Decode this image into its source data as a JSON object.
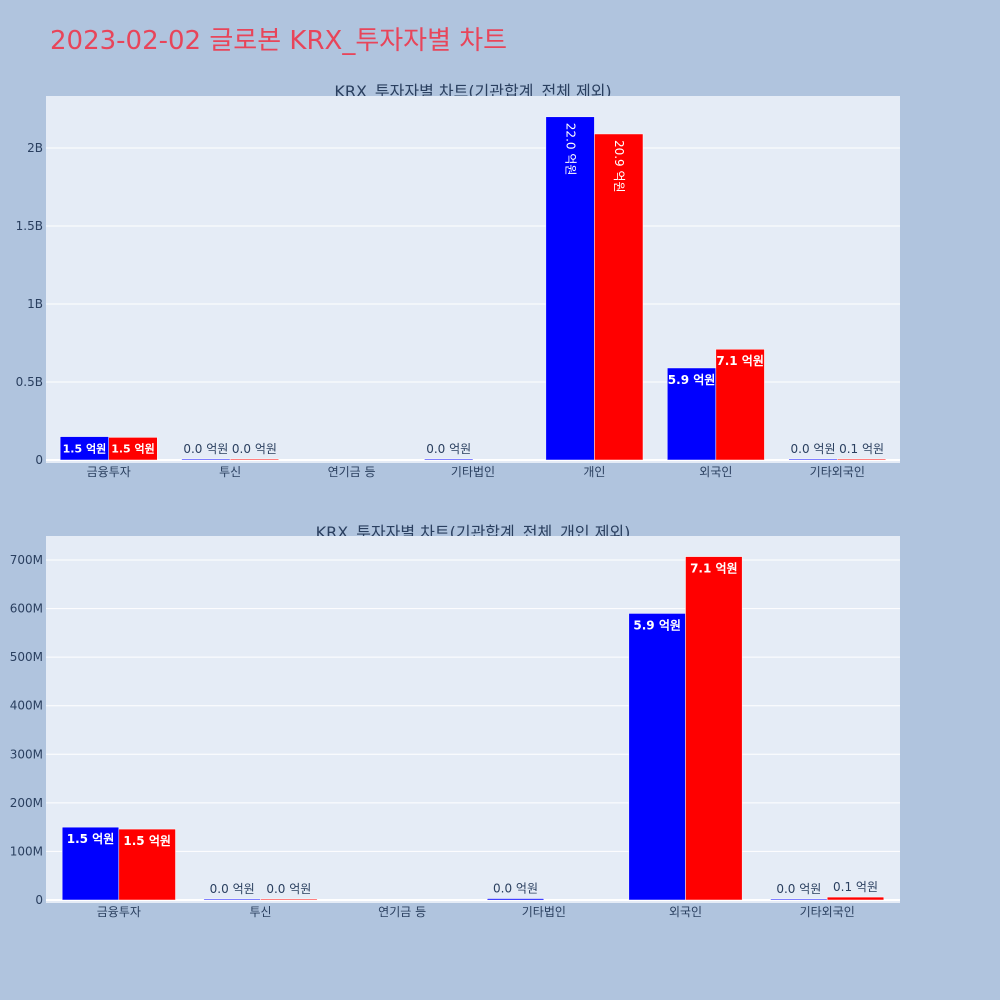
{
  "page": {
    "title": "2023-02-02 글로본 KRX_투자자별 차트"
  },
  "colors": {
    "background": "#b0c4de",
    "plot_bg": "#e5ecf6",
    "series_1": "#0000ff",
    "series_2": "#ff0000",
    "title": "#e8455a",
    "text": "#2a3f5f"
  },
  "chart_data": [
    {
      "type": "bar",
      "title": "KRX_투자자별 차트(기관합계_전체 제외)",
      "categories": [
        "금융투자",
        "투신",
        "연기금 등",
        "기타법인",
        "개인",
        "외국인",
        "기타외국인"
      ],
      "series": [
        {
          "color": "#0000ff",
          "values": [
            150000000,
            0,
            null,
            2000000,
            2200000000,
            590000000,
            1000000
          ],
          "labels": [
            "1.5 억원",
            "0.0 억원",
            "",
            "0.0 억원",
            "22.0 억원",
            "5.9 억원",
            "0.0 억원"
          ]
        },
        {
          "color": "#ff0000",
          "values": [
            145000000,
            1000000,
            null,
            null,
            2090000000,
            710000000,
            6000000
          ],
          "labels": [
            "1.5 억원",
            "0.0 억원",
            "",
            "",
            "20.9 억원",
            "7.1 억원",
            "0.1 억원"
          ]
        }
      ],
      "yticks": [
        0,
        500000000,
        1000000000,
        1500000000,
        2000000000
      ],
      "ytick_labels": [
        "0",
        "0.5B",
        "1B",
        "1.5B",
        "2B"
      ],
      "ylim": [
        0,
        2200000000
      ],
      "grid": true
    },
    {
      "type": "bar",
      "title": "KRX_투자자별 차트(기관합계_전체_개인 제외)",
      "categories": [
        "금융투자",
        "투신",
        "연기금 등",
        "기타법인",
        "외국인",
        "기타외국인"
      ],
      "series": [
        {
          "color": "#0000ff",
          "values": [
            150000000,
            2000000,
            null,
            3000000,
            590000000,
            2000000
          ],
          "labels": [
            "1.5 억원",
            "0.0 억원",
            "",
            "0.0 억원",
            "5.9 억원",
            "0.0 억원"
          ]
        },
        {
          "color": "#ff0000",
          "values": [
            146000000,
            1000000,
            null,
            null,
            707000000,
            6000000
          ],
          "labels": [
            "1.5 억원",
            "0.0 억원",
            "",
            "",
            "7.1 억원",
            "0.1 억원"
          ]
        }
      ],
      "yticks": [
        0,
        100000000,
        200000000,
        300000000,
        400000000,
        500000000,
        600000000,
        700000000
      ],
      "ytick_labels": [
        "0",
        "100M",
        "200M",
        "300M",
        "400M",
        "500M",
        "600M",
        "700M"
      ],
      "ylim": [
        0,
        750000000
      ],
      "grid": true
    }
  ]
}
